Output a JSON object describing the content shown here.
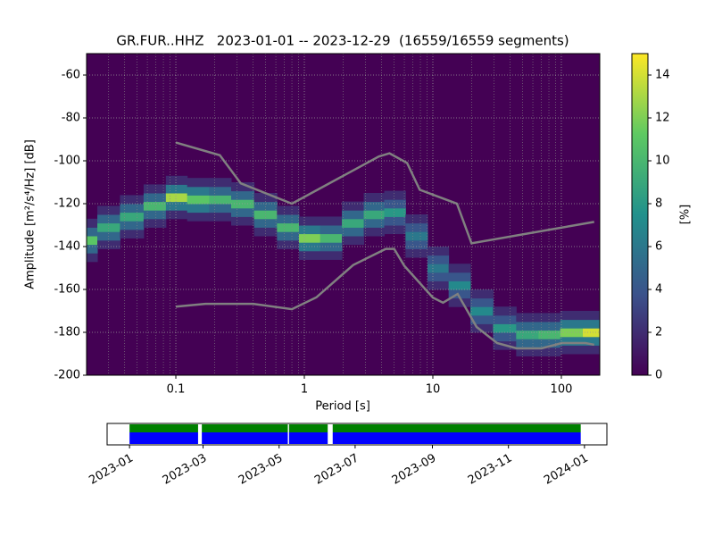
{
  "chart_data": {
    "type": "ppsd",
    "title": "GR.FUR..HHZ   2023-01-01 -- 2023-12-29  (16559/16559 segments)",
    "xlabel": "Period [s]",
    "ylabel": "Amplitude [m²/s⁴/Hz] [dB]",
    "xscale": "log",
    "xlim": [
      0.0202,
      199
    ],
    "xticks": [
      0.1,
      1,
      10,
      100
    ],
    "ylim": [
      -200,
      -50
    ],
    "yticks": [
      -200,
      -180,
      -160,
      -140,
      -120,
      -100,
      -80,
      -60
    ],
    "grid": true,
    "background": "#440154",
    "colormap": "viridis",
    "density": {
      "periods": [
        0.02,
        0.03,
        0.045,
        0.07,
        0.1,
        0.15,
        0.22,
        0.33,
        0.5,
        0.75,
        1.1,
        1.6,
        2.4,
        3.5,
        5,
        7.5,
        11,
        16,
        24,
        36,
        55,
        80,
        120,
        180
      ],
      "amplitudes": [
        [
          -145,
          -141,
          -137,
          -133,
          -129
        ],
        [
          -139,
          -135,
          -131,
          -127,
          -123
        ],
        [
          -134,
          -130,
          -126,
          -122,
          -118
        ],
        [
          -129,
          -125,
          -121,
          -117,
          -113
        ],
        [
          -125,
          -121,
          -117,
          -113,
          -109
        ],
        [
          -126,
          -122,
          -118,
          -114,
          -110
        ],
        [
          -126,
          -122,
          -118,
          -114,
          -110
        ],
        [
          -128,
          -124,
          -120,
          -116,
          -112
        ],
        [
          -133,
          -129,
          -125,
          -121,
          -117
        ],
        [
          -139,
          -135,
          -131,
          -127,
          -123
        ],
        [
          -144,
          -140,
          -136,
          -132,
          -128
        ],
        [
          -144,
          -140,
          -136,
          -132,
          -128
        ],
        [
          -137,
          -133,
          -129,
          -125,
          -121
        ],
        [
          -133,
          -129,
          -125,
          -121,
          -117
        ],
        [
          -132,
          -128,
          -124,
          -120,
          -116
        ],
        [
          -143,
          -139,
          -135,
          -131,
          -127
        ],
        [
          -158,
          -154,
          -150,
          -146,
          -142
        ],
        [
          -166,
          -162,
          -158,
          -154,
          -150
        ],
        [
          -178,
          -174,
          -170,
          -166,
          -162
        ],
        [
          -186,
          -182,
          -178,
          -174,
          -170
        ],
        [
          -189,
          -185,
          -181,
          -177,
          -173
        ],
        [
          -189,
          -185,
          -181,
          -177,
          -173
        ],
        [
          -188,
          -184,
          -180,
          -176,
          -172
        ],
        [
          -188,
          -184,
          -180,
          -176,
          -172
        ]
      ],
      "percents": [
        [
          2,
          5,
          11,
          5,
          2
        ],
        [
          2,
          5,
          9,
          5,
          2
        ],
        [
          2,
          5,
          9,
          5,
          2
        ],
        [
          2,
          5,
          10,
          5,
          2
        ],
        [
          2,
          6,
          13,
          6,
          2
        ],
        [
          2,
          6,
          11,
          6,
          2
        ],
        [
          2,
          5,
          10,
          5,
          2
        ],
        [
          2,
          5,
          10,
          5,
          2
        ],
        [
          2,
          5,
          10,
          5,
          2
        ],
        [
          2,
          5,
          10,
          5,
          2
        ],
        [
          2,
          6,
          12,
          6,
          2
        ],
        [
          2,
          5,
          10,
          5,
          2
        ],
        [
          2,
          5,
          9,
          5,
          2
        ],
        [
          2,
          5,
          9,
          5,
          2
        ],
        [
          2,
          4,
          8,
          4,
          2
        ],
        [
          2,
          4,
          6,
          4,
          2
        ],
        [
          2,
          4,
          6,
          4,
          2
        ],
        [
          2,
          4,
          7,
          4,
          2
        ],
        [
          2,
          4,
          7,
          4,
          2
        ],
        [
          2,
          4,
          8,
          4,
          2
        ],
        [
          2,
          5,
          9,
          5,
          2
        ],
        [
          2,
          5,
          10,
          5,
          2
        ],
        [
          2,
          6,
          12,
          6,
          2
        ],
        [
          2,
          6,
          14,
          6,
          2
        ]
      ]
    },
    "series": [
      {
        "color": "#808080",
        "x": [
          0.1,
          0.22,
          0.32,
          0.8,
          3.8,
          4.6,
          6.3,
          7.9,
          15.4,
          20,
          180
        ],
        "values": [
          -91.5,
          -97.4,
          -110.5,
          -120,
          -98,
          -96.5,
          -101,
          -113.5,
          -120,
          -138.5,
          -128.5
        ]
      },
      {
        "color": "#808080",
        "x": [
          0.1,
          0.17,
          0.4,
          0.8,
          1.24,
          2.4,
          4.3,
          5,
          6,
          10,
          12,
          15.6,
          21.9,
          31.6,
          45,
          70,
          101,
          154,
          180
        ],
        "values": [
          -168,
          -166.7,
          -166.7,
          -169.2,
          -163.7,
          -148.6,
          -141.1,
          -141.1,
          -149,
          -163.8,
          -166.2,
          -162.1,
          -177.5,
          -185,
          -187.5,
          -187.5,
          -185,
          -185,
          -185.8
        ]
      }
    ],
    "colorbar": {
      "label": "[%]",
      "lim": [
        0,
        15
      ],
      "ticks": [
        0,
        2,
        4,
        6,
        8,
        10,
        12,
        14
      ]
    },
    "timeline": {
      "xlim": [
        "2022-12-14",
        "2024-01-19"
      ],
      "xticks": [
        "2023-01",
        "2023-03",
        "2023-05",
        "2023-07",
        "2023-09",
        "2023-11",
        "2024-01"
      ],
      "colors": [
        "#008000",
        "#0000ff"
      ],
      "coverage": [
        {
          "start": "2023-01-01",
          "end": "2023-02-25"
        },
        {
          "start": "2023-02-28",
          "end": "2023-05-08"
        },
        {
          "start": "2023-05-09",
          "end": "2023-06-09"
        },
        {
          "start": "2023-06-13",
          "end": "2023-12-29"
        }
      ]
    }
  }
}
